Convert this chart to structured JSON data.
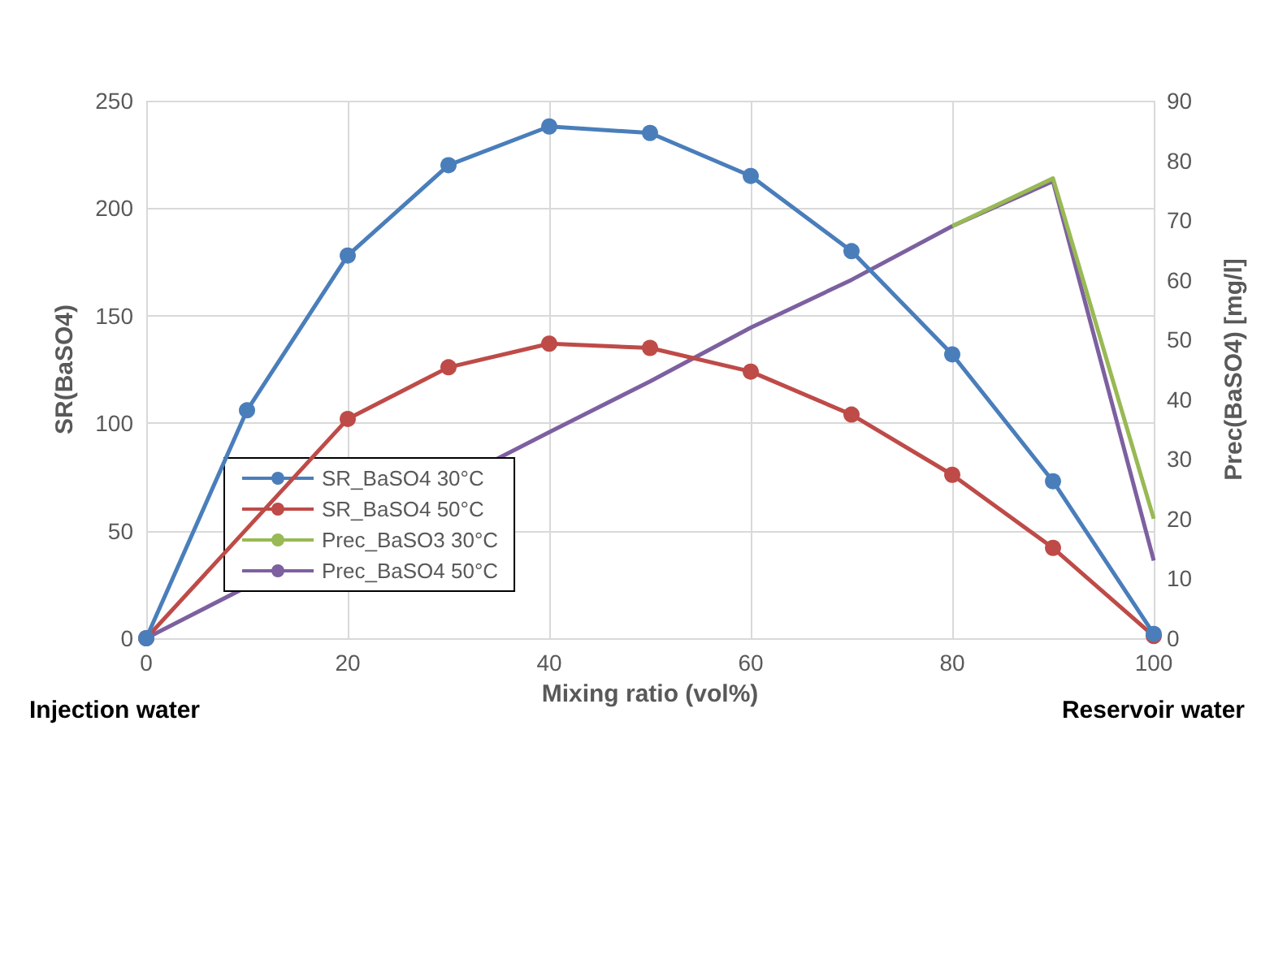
{
  "chart_data": {
    "type": "line",
    "xlabel": "Mixing ratio (vol%)",
    "ylabel": "SR(BaSO4)",
    "y2label": "Prec(BaSO4) [mg/l]",
    "x": [
      0,
      10,
      20,
      30,
      40,
      50,
      60,
      70,
      80,
      90,
      100
    ],
    "xlim": [
      0,
      100
    ],
    "xticks": [
      0,
      20,
      40,
      60,
      80,
      100
    ],
    "ylim": [
      0,
      250
    ],
    "yticks": [
      0,
      50,
      100,
      150,
      200,
      250
    ],
    "y2lim": [
      0,
      90
    ],
    "y2ticks": [
      0,
      10,
      20,
      30,
      40,
      50,
      60,
      70,
      80,
      90
    ],
    "series": [
      {
        "name": "SR_BaSO4 30°C",
        "color": "#4a7ebb",
        "marker": "circle",
        "values": [
          0,
          106,
          178,
          220,
          238,
          235,
          215,
          180,
          132,
          73,
          2
        ]
      },
      {
        "name": "SR_BaSO4 50°C",
        "color": "#be4b48",
        "marker": "circle",
        "values": [
          0,
          null,
          102,
          126,
          137,
          135,
          124,
          104,
          76,
          42,
          1
        ]
      },
      {
        "name": "Prec_BaSO3 30°C",
        "color": "#98b954",
        "marker": "none",
        "axis": "y2",
        "values": [
          null,
          null,
          null,
          null,
          null,
          null,
          null,
          null,
          69,
          77,
          20
        ]
      },
      {
        "name": "Prec_BaSO4 50°C",
        "color": "#7d60a0",
        "marker": "none",
        "axis": "y2",
        "values": [
          0,
          null,
          null,
          null,
          34.5,
          43,
          52,
          60,
          69,
          76.5,
          13
        ]
      }
    ],
    "annotations": [
      "Injection water",
      "Reservoir water"
    ],
    "grid": true,
    "legend": "bottom left"
  }
}
